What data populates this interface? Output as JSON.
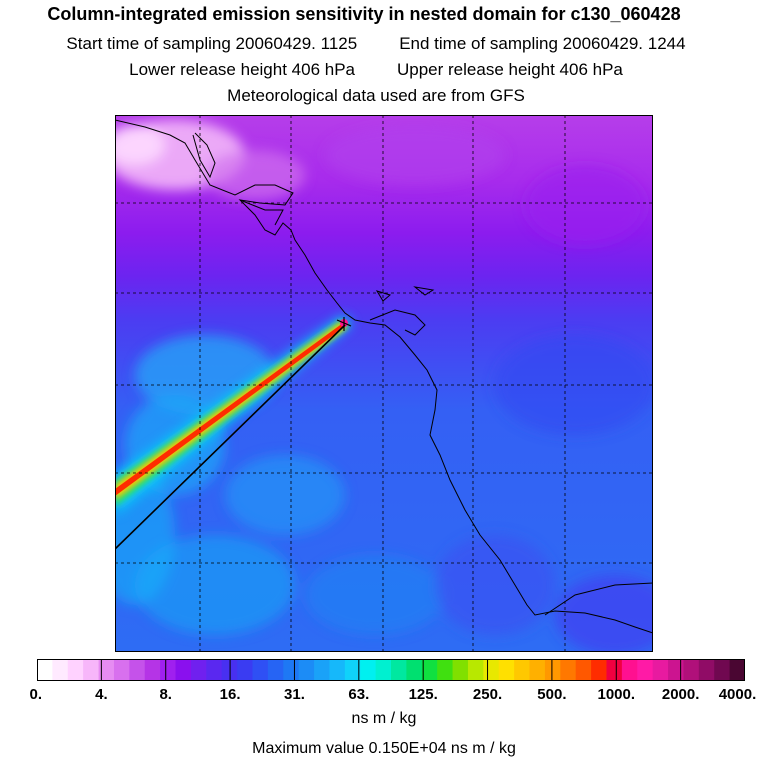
{
  "header": {
    "title": "Column-integrated emission sensitivity in nested domain for c130_060428",
    "start_label": "Start time of sampling 20060429.  1125",
    "end_label": "End time of sampling 20060429.  1244",
    "lower_label": "Lower release height  406 hPa",
    "upper_label": "Upper release height  406 hPa",
    "met_label": "Meteorological data used are from GFS"
  },
  "chart_data": {
    "type": "heatmap",
    "title": "Column-integrated emission sensitivity in nested domain for c130_060428",
    "colorbar": {
      "tick_labels": [
        "0.",
        "4.",
        "8.",
        "16.",
        "31.",
        "63.",
        "125.",
        "250.",
        "500.",
        "1000.",
        "2000.",
        "4000."
      ],
      "units": "ns m / kg",
      "scale": "log2"
    },
    "max_value": 1500,
    "max_value_label": "Maximum value  0.150E+04 ns m / kg",
    "grid": true,
    "colors": {
      "colorbar": [
        "#ffffff",
        "#ffeaff",
        "#ffd2ff",
        "#f7b6fa",
        "#e68cf2",
        "#d870ee",
        "#c552ea",
        "#b534e6",
        "#a020ef",
        "#8a10ee",
        "#7020ef",
        "#5a28f0",
        "#4830f0",
        "#3a3cf2",
        "#2f50f4",
        "#2664f4",
        "#1e78f4",
        "#1c8cf6",
        "#1aa2f8",
        "#16b8fa",
        "#10d2fa",
        "#00f0f0",
        "#00f0d0",
        "#00e8a0",
        "#00e070",
        "#10e040",
        "#40e010",
        "#80e000",
        "#b8e800",
        "#e8e800",
        "#ffe000",
        "#ffc800",
        "#ffb000",
        "#ff9800",
        "#ff7800",
        "#ff5800",
        "#ff2c00",
        "#f00040",
        "#ff1090",
        "#ff1aa6",
        "#e81aa0",
        "#cc1490",
        "#b0107a",
        "#900c66",
        "#700850",
        "#4a0632"
      ],
      "background_north": "#a828ec",
      "background_south": "#2e66f4",
      "plume_core": "#ff2000",
      "plume_edge": "#00f0f0"
    }
  }
}
